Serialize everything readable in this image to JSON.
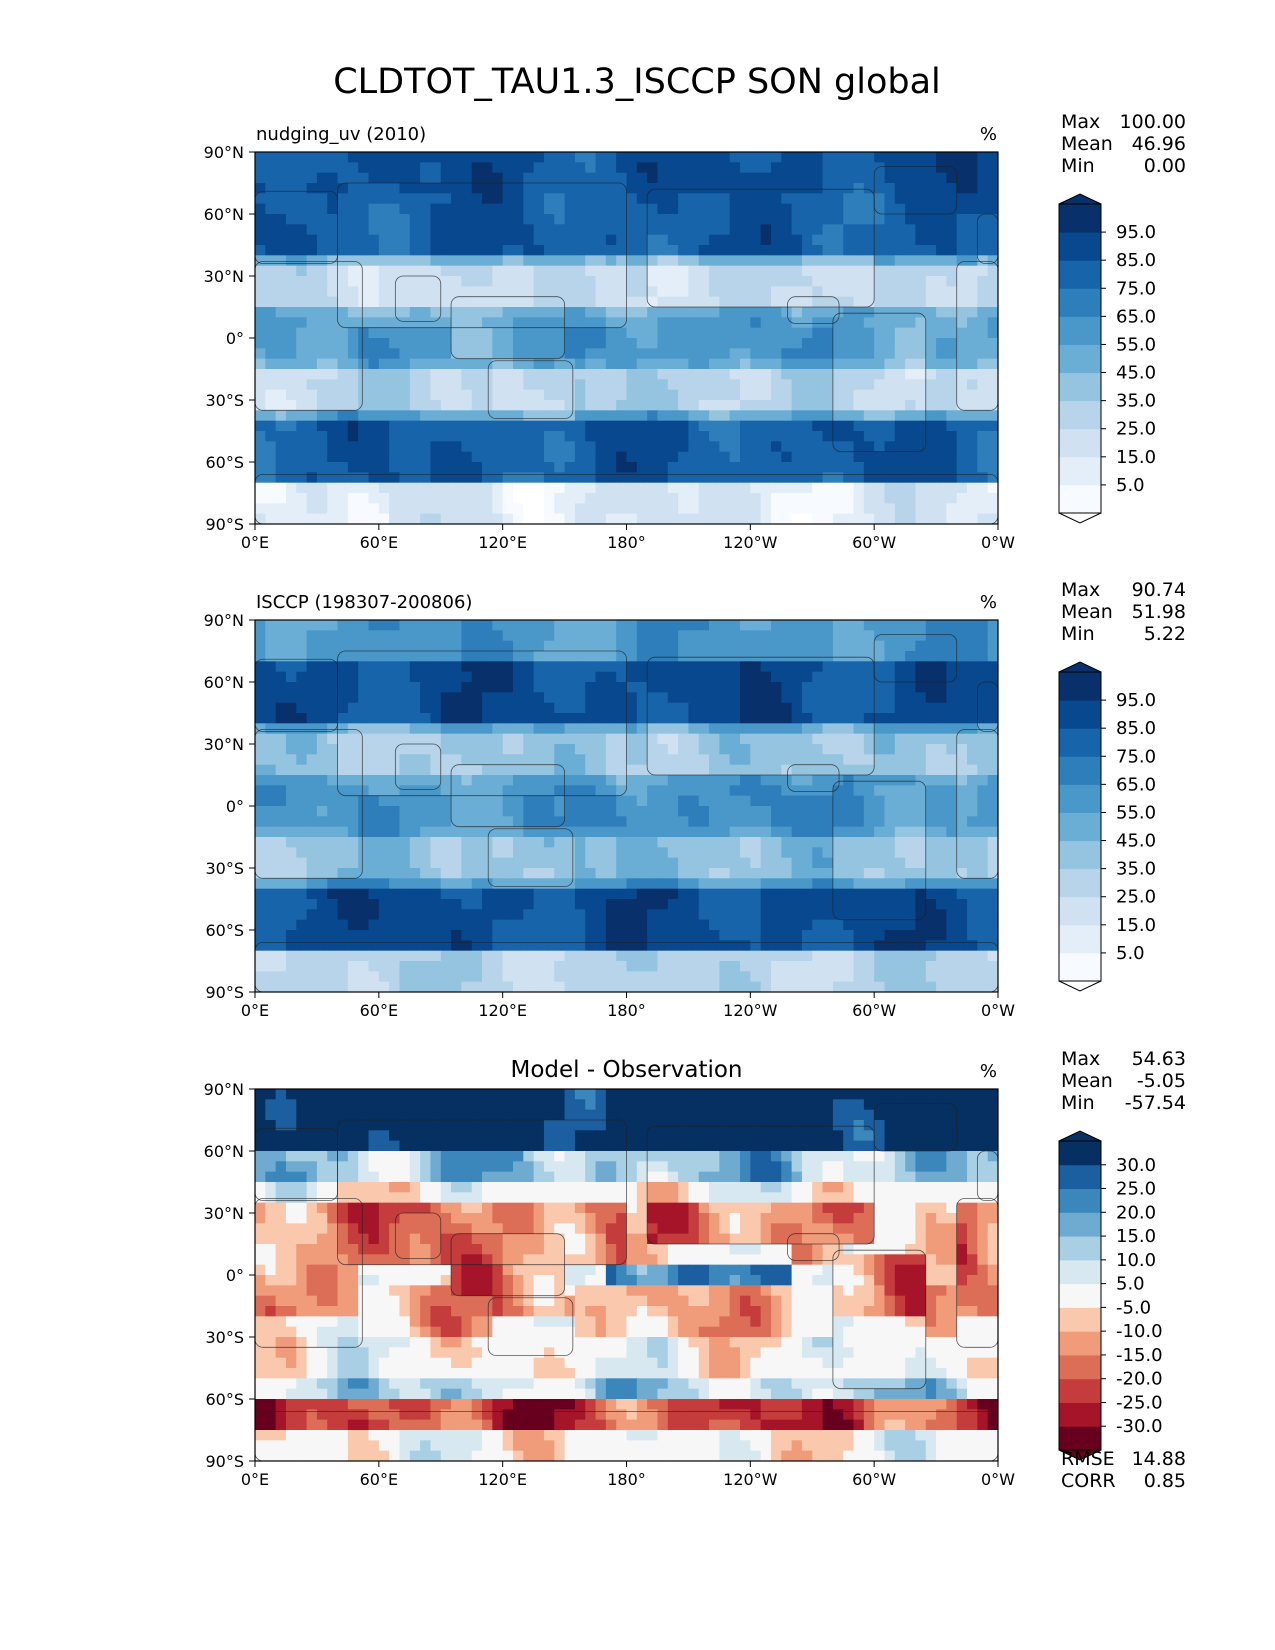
{
  "figure": {
    "title": "CLDTOT_TAU1.3_ISCCP SON global"
  },
  "chart_data": [
    {
      "type": "heatmap",
      "panel": "test",
      "label": "nudging_uv (2010)",
      "center_title": "",
      "units": "%",
      "stats": [
        {
          "name": "Max",
          "value": "100.00"
        },
        {
          "name": "Mean",
          "value": "46.96"
        },
        {
          "name": "Min",
          "value": "0.00"
        }
      ],
      "footer_stats": [],
      "x_ticks": [
        "0°E",
        "60°E",
        "120°E",
        "180°",
        "120°W",
        "60°W",
        "0°W"
      ],
      "y_ticks": [
        "90°N",
        "60°N",
        "30°N",
        "0°",
        "30°S",
        "60°S",
        "90°S"
      ],
      "xlim": [
        0,
        360
      ],
      "ylim": [
        -90,
        90
      ],
      "colorbar": {
        "levels": [
          0,
          5,
          10,
          20,
          30,
          40,
          50,
          60,
          70,
          80,
          90,
          100
        ],
        "tick_labels": [
          "5.0",
          "15.0",
          "25.0",
          "35.0",
          "45.0",
          "55.0",
          "65.0",
          "75.0",
          "85.0",
          "95.0"
        ],
        "colors": [
          "#f7fbff",
          "#e3eef8",
          "#d0e1f2",
          "#b7d4ea",
          "#94c4df",
          "#6aaed6",
          "#4a98c9",
          "#2e7ebc",
          "#1764ab",
          "#08488e",
          "#08306b"
        ],
        "under_color": "#ffffff",
        "over_color": "#08306b"
      },
      "field": {
        "base": 50,
        "lat_gain": 6,
        "cos_gain": 12,
        "tropics_dip": 14,
        "land_dip": 10,
        "polar_boost": 32,
        "south_polar": -40
      }
    },
    {
      "type": "heatmap",
      "panel": "reference",
      "label": "ISCCP (198307-200806)",
      "center_title": "",
      "units": "%",
      "stats": [
        {
          "name": "Max",
          "value": "90.74"
        },
        {
          "name": "Mean",
          "value": "51.98"
        },
        {
          "name": "Min",
          "value": "5.22"
        }
      ],
      "footer_stats": [],
      "x_ticks": [
        "0°E",
        "60°E",
        "120°E",
        "180°",
        "120°W",
        "60°W",
        "0°W"
      ],
      "y_ticks": [
        "90°N",
        "60°N",
        "30°N",
        "0°",
        "30°S",
        "60°S",
        "90°S"
      ],
      "xlim": [
        0,
        360
      ],
      "ylim": [
        -90,
        90
      ],
      "colorbar": {
        "levels": [
          0,
          5,
          10,
          20,
          30,
          40,
          50,
          60,
          70,
          80,
          90,
          100
        ],
        "tick_labels": [
          "5.0",
          "15.0",
          "25.0",
          "35.0",
          "45.0",
          "55.0",
          "65.0",
          "75.0",
          "85.0",
          "95.0"
        ],
        "colors": [
          "#f7fbff",
          "#e3eef8",
          "#d0e1f2",
          "#b7d4ea",
          "#94c4df",
          "#6aaed6",
          "#4a98c9",
          "#2e7ebc",
          "#1764ab",
          "#08488e",
          "#08306b"
        ],
        "under_color": "#ffffff",
        "over_color": "#08306b"
      },
      "field": {
        "base": 55,
        "lat_gain": 5,
        "cos_gain": 8,
        "tropics_dip": 8,
        "land_dip": 8,
        "polar_boost": 0,
        "south_polar": -30
      }
    },
    {
      "type": "heatmap",
      "panel": "difference",
      "label": "",
      "center_title": "Model - Observation",
      "units": "%",
      "stats": [
        {
          "name": "Max",
          "value": "54.63"
        },
        {
          "name": "Mean",
          "value": "-5.05"
        },
        {
          "name": "Min",
          "value": "-57.54"
        }
      ],
      "footer_stats": [
        {
          "name": "RMSE",
          "value": "14.88"
        },
        {
          "name": "CORR",
          "value": "0.85"
        }
      ],
      "x_ticks": [
        "0°E",
        "60°E",
        "120°E",
        "180°",
        "120°W",
        "60°W",
        "0°W"
      ],
      "y_ticks": [
        "90°N",
        "60°N",
        "30°N",
        "0°",
        "30°S",
        "60°S",
        "90°S"
      ],
      "xlim": [
        0,
        360
      ],
      "ylim": [
        -90,
        90
      ],
      "colorbar": {
        "levels": [
          -35,
          -30,
          -25,
          -20,
          -15,
          -10,
          -5,
          5,
          10,
          15,
          20,
          25,
          30,
          35
        ],
        "tick_labels": [
          "-30.0",
          "-25.0",
          "-20.0",
          "-15.0",
          "-10.0",
          "-5.0",
          "5.0",
          "10.0",
          "15.0",
          "20.0",
          "25.0",
          "30.0"
        ],
        "colors": [
          "#67001f",
          "#a51429",
          "#c43c3c",
          "#dc6e57",
          "#f09b7a",
          "#f9c8ad",
          "#f7f7f7",
          "#d7e8f1",
          "#a9cfe5",
          "#6fabd0",
          "#3b87bc",
          "#1c5fa0",
          "#053061"
        ],
        "under_color": "#67001f",
        "over_color": "#053061"
      },
      "field": {
        "diff": true
      }
    }
  ]
}
